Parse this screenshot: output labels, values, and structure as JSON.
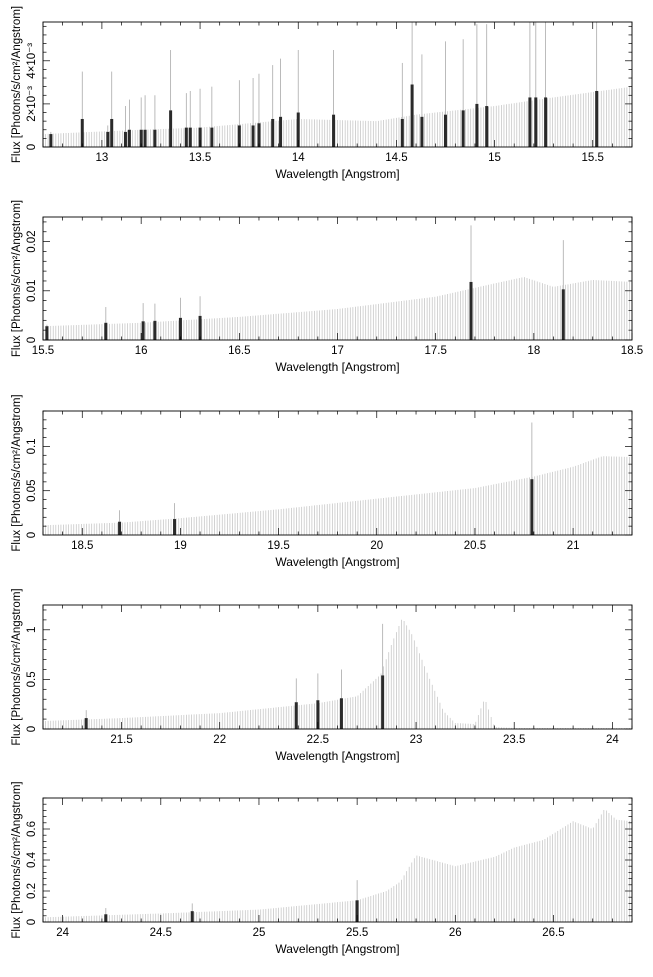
{
  "chart_data": [
    {
      "type": "bar",
      "xlabel": "Wavelength [Angstrom]",
      "ylabel": "Flux [Photons/s/cm²/Angstrom]",
      "xlim": [
        12.7,
        15.7
      ],
      "ylim": [
        0,
        0.0058
      ],
      "xticks": [
        13,
        13.5,
        14,
        14.5,
        15,
        15.5
      ],
      "xticklabels": [
        "13",
        "13.5",
        "14",
        "14.5",
        "15",
        "15.5"
      ],
      "yticks": [
        0,
        0.002,
        0.004
      ],
      "yticklabels": [
        "0",
        "2×10⁻³",
        "4×10⁻³"
      ],
      "continuum": {
        "x": [
          12.7,
          13.2,
          13.5,
          14.0,
          14.4,
          14.6,
          15.0,
          15.3,
          15.7
        ],
        "y": [
          0.0006,
          0.0008,
          0.0009,
          0.0013,
          0.0012,
          0.0015,
          0.0019,
          0.0023,
          0.0028
        ]
      },
      "lines": [
        {
          "x": 12.74,
          "y": 0.0006,
          "err": 0.0001
        },
        {
          "x": 12.9,
          "y": 0.0013,
          "err": 0.0022
        },
        {
          "x": 13.03,
          "y": 0.0007,
          "err": 0.0003
        },
        {
          "x": 13.05,
          "y": 0.0013,
          "err": 0.0022
        },
        {
          "x": 13.12,
          "y": 0.0007,
          "err": 0.0012
        },
        {
          "x": 13.14,
          "y": 0.0008,
          "err": 0.0014
        },
        {
          "x": 13.2,
          "y": 0.0008,
          "err": 0.0015
        },
        {
          "x": 13.22,
          "y": 0.0008,
          "err": 0.0016
        },
        {
          "x": 13.27,
          "y": 0.0008,
          "err": 0.0016
        },
        {
          "x": 13.35,
          "y": 0.0017,
          "err": 0.0028
        },
        {
          "x": 13.43,
          "y": 0.0009,
          "err": 0.0016
        },
        {
          "x": 13.45,
          "y": 0.0009,
          "err": 0.0017
        },
        {
          "x": 13.5,
          "y": 0.0009,
          "err": 0.0018
        },
        {
          "x": 13.56,
          "y": 0.0009,
          "err": 0.0019
        },
        {
          "x": 13.7,
          "y": 0.001,
          "err": 0.0021
        },
        {
          "x": 13.77,
          "y": 0.001,
          "err": 0.0022
        },
        {
          "x": 13.8,
          "y": 0.0011,
          "err": 0.0023
        },
        {
          "x": 13.87,
          "y": 0.0013,
          "err": 0.0025
        },
        {
          "x": 13.91,
          "y": 0.0014,
          "err": 0.0027
        },
        {
          "x": 14.0,
          "y": 0.0016,
          "err": 0.0029
        },
        {
          "x": 14.18,
          "y": 0.0015,
          "err": 0.003
        },
        {
          "x": 14.53,
          "y": 0.0013,
          "err": 0.0026
        },
        {
          "x": 14.58,
          "y": 0.0029,
          "err": 0.0049
        },
        {
          "x": 14.63,
          "y": 0.0014,
          "err": 0.0029
        },
        {
          "x": 14.75,
          "y": 0.0015,
          "err": 0.0034
        },
        {
          "x": 14.84,
          "y": 0.0017,
          "err": 0.0033
        },
        {
          "x": 14.91,
          "y": 0.002,
          "err": 0.0037
        },
        {
          "x": 14.96,
          "y": 0.0019,
          "err": 0.0038
        },
        {
          "x": 15.18,
          "y": 0.0023,
          "err": 0.0046
        },
        {
          "x": 15.21,
          "y": 0.0023,
          "err": 0.0046
        },
        {
          "x": 15.26,
          "y": 0.0023,
          "err": 0.0046
        },
        {
          "x": 15.52,
          "y": 0.0026,
          "err": 0.0052
        }
      ]
    },
    {
      "type": "bar",
      "xlabel": "Wavelength [Angstrom]",
      "ylabel": "Flux [Photons/s/cm²/Angstrom]",
      "xlim": [
        15.5,
        18.5
      ],
      "ylim": [
        0,
        0.025
      ],
      "xticks": [
        15.5,
        16,
        16.5,
        17,
        17.5,
        18,
        18.5
      ],
      "xticklabels": [
        "15.5",
        "16",
        "16.5",
        "17",
        "17.5",
        "18",
        "18.5"
      ],
      "yticks": [
        0,
        0.01,
        0.02
      ],
      "yticklabels": [
        "0",
        "0.01",
        "0.02"
      ],
      "continuum": {
        "x": [
          15.5,
          16.0,
          16.5,
          17.0,
          17.5,
          17.8,
          17.95,
          18.1,
          18.3,
          18.5
        ],
        "y": [
          0.0028,
          0.0035,
          0.0047,
          0.0063,
          0.0088,
          0.0115,
          0.0128,
          0.0108,
          0.0122,
          0.0118
        ]
      },
      "lines": [
        {
          "x": 15.52,
          "y": 0.0028,
          "err": 0.0003
        },
        {
          "x": 15.82,
          "y": 0.0035,
          "err": 0.0032
        },
        {
          "x": 16.01,
          "y": 0.0038,
          "err": 0.0037
        },
        {
          "x": 16.07,
          "y": 0.0039,
          "err": 0.0035
        },
        {
          "x": 16.2,
          "y": 0.0045,
          "err": 0.0041
        },
        {
          "x": 16.3,
          "y": 0.0049,
          "err": 0.004
        },
        {
          "x": 17.68,
          "y": 0.0118,
          "err": 0.0115
        },
        {
          "x": 18.15,
          "y": 0.0103,
          "err": 0.01
        }
      ]
    },
    {
      "type": "bar",
      "xlabel": "Wavelength [Angstrom]",
      "ylabel": "Flux [Photons/s/cm²/Angstrom]",
      "xlim": [
        18.3,
        21.3
      ],
      "ylim": [
        0,
        0.14
      ],
      "xticks": [
        18.5,
        19,
        19.5,
        20,
        20.5,
        21
      ],
      "xticklabels": [
        "18.5",
        "19",
        "19.5",
        "20",
        "20.5",
        "21"
      ],
      "yticks": [
        0,
        0.05,
        0.1
      ],
      "yticklabels": [
        "0",
        "0.05",
        "0.1"
      ],
      "continuum": {
        "x": [
          18.3,
          18.7,
          19.0,
          19.5,
          20.0,
          20.5,
          20.8,
          21.0,
          21.15,
          21.3
        ],
        "y": [
          0.011,
          0.014,
          0.019,
          0.029,
          0.041,
          0.053,
          0.066,
          0.077,
          0.089,
          0.088
        ]
      },
      "lines": [
        {
          "x": 18.69,
          "y": 0.015,
          "err": 0.013
        },
        {
          "x": 18.97,
          "y": 0.018,
          "err": 0.018
        },
        {
          "x": 20.79,
          "y": 0.063,
          "err": 0.064
        }
      ]
    },
    {
      "type": "bar",
      "xlabel": "Wavelength [Angstrom]",
      "ylabel": "Flux [Photons/s/cm²/Angstrom]",
      "xlim": [
        21.1,
        24.1
      ],
      "ylim": [
        0,
        1.25
      ],
      "xticks": [
        21.5,
        22,
        22.5,
        23,
        23.5,
        24
      ],
      "xticklabels": [
        "21.5",
        "22",
        "22.5",
        "23",
        "23.5",
        "24"
      ],
      "yticks": [
        0,
        0.5,
        1
      ],
      "yticklabels": [
        "0",
        "0.5",
        "1"
      ],
      "continuum": {
        "x": [
          21.1,
          21.5,
          22.0,
          22.5,
          22.7,
          22.82,
          22.88,
          22.93,
          22.98,
          23.06,
          23.14,
          23.2,
          23.3,
          23.35,
          23.4,
          23.5,
          24.1
        ],
        "y": [
          0.08,
          0.11,
          0.16,
          0.26,
          0.33,
          0.55,
          0.88,
          1.12,
          0.95,
          0.55,
          0.18,
          0.06,
          0.05,
          0.31,
          0.02,
          0.01,
          0.01
        ]
      },
      "lines": [
        {
          "x": 21.32,
          "y": 0.11,
          "err": 0.08
        },
        {
          "x": 22.39,
          "y": 0.27,
          "err": 0.24
        },
        {
          "x": 22.5,
          "y": 0.29,
          "err": 0.27
        },
        {
          "x": 22.62,
          "y": 0.31,
          "err": 0.29
        },
        {
          "x": 22.83,
          "y": 0.54,
          "err": 0.52
        }
      ]
    },
    {
      "type": "bar",
      "xlabel": "Wavelength [Angstrom]",
      "ylabel": "Flux [Photons/s/cm²/Angstrom]",
      "xlim": [
        23.9,
        26.9
      ],
      "ylim": [
        0,
        0.8
      ],
      "xticks": [
        24,
        24.5,
        25,
        25.5,
        26,
        26.5
      ],
      "xticklabels": [
        "24",
        "24.5",
        "25",
        "25.5",
        "26",
        "26.5"
      ],
      "yticks": [
        0,
        0.2,
        0.4,
        0.6
      ],
      "yticklabels": [
        "0",
        "0.2",
        "0.4",
        "0.6"
      ],
      "continuum": {
        "x": [
          23.9,
          24.5,
          25.0,
          25.5,
          25.65,
          25.72,
          25.8,
          26.0,
          26.2,
          26.3,
          26.45,
          26.6,
          26.7,
          26.76,
          26.82,
          26.9
        ],
        "y": [
          0.03,
          0.055,
          0.08,
          0.14,
          0.2,
          0.26,
          0.43,
          0.36,
          0.42,
          0.48,
          0.53,
          0.65,
          0.6,
          0.73,
          0.66,
          0.65
        ]
      },
      "lines": [
        {
          "x": 24.22,
          "y": 0.05,
          "err": 0.04
        },
        {
          "x": 24.66,
          "y": 0.07,
          "err": 0.05
        },
        {
          "x": 25.5,
          "y": 0.14,
          "err": 0.13
        }
      ]
    }
  ]
}
